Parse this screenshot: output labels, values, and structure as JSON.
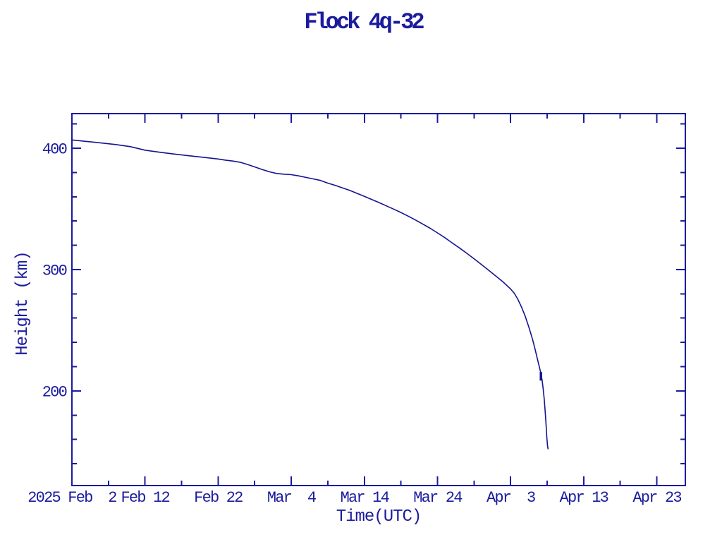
{
  "page": {
    "background": "#ffffff"
  },
  "chart_data": {
    "type": "line",
    "title": "Flock 4q-32",
    "xlabel": "Time(UTC)",
    "ylabel": "Height (km)",
    "x_unit": "days since 2025 Feb 2 00:00 UTC",
    "xlim": [
      0,
      83.9
    ],
    "ylim": [
      122,
      428.5
    ],
    "grid": false,
    "legend": null,
    "colors": {
      "ink": "#1b1b9e",
      "curve": "#14148f",
      "background": "#ffffff"
    },
    "x_major_ticks": [
      {
        "day": 0,
        "label": "2025 Feb  2"
      },
      {
        "day": 10,
        "label": "Feb 12"
      },
      {
        "day": 20,
        "label": "Feb 22"
      },
      {
        "day": 30,
        "label": "Mar  4"
      },
      {
        "day": 40,
        "label": "Mar 14"
      },
      {
        "day": 50,
        "label": "Mar 24"
      },
      {
        "day": 60,
        "label": "Apr  3"
      },
      {
        "day": 70,
        "label": "Apr 13"
      },
      {
        "day": 80,
        "label": "Apr 23"
      }
    ],
    "x_minor_ticks": [
      5,
      15,
      25,
      35,
      45,
      55,
      65,
      75
    ],
    "y_major_ticks": [
      {
        "value": 200,
        "label": "200"
      },
      {
        "value": 300,
        "label": "300"
      },
      {
        "value": 400,
        "label": "400"
      }
    ],
    "y_minor_ticks": [
      140,
      160,
      180,
      220,
      240,
      260,
      280,
      320,
      340,
      360,
      380,
      420
    ],
    "series": [
      {
        "name": "Flock 4q-32 orbital height",
        "points_day_km": [
          [
            0,
            406.8
          ],
          [
            2,
            405.6
          ],
          [
            4,
            404.3
          ],
          [
            6,
            403.0
          ],
          [
            8,
            401.3
          ],
          [
            10,
            398.4
          ],
          [
            12,
            396.7
          ],
          [
            14,
            395.2
          ],
          [
            16,
            393.8
          ],
          [
            18,
            392.5
          ],
          [
            20,
            391.1
          ],
          [
            21,
            390.2
          ],
          [
            22,
            389.4
          ],
          [
            23,
            388.4
          ],
          [
            24,
            386.6
          ],
          [
            25,
            384.6
          ],
          [
            26,
            382.5
          ],
          [
            27,
            380.6
          ],
          [
            28,
            379.2
          ],
          [
            29,
            378.6
          ],
          [
            30,
            378.2
          ],
          [
            31,
            377.2
          ],
          [
            32,
            375.9
          ],
          [
            33,
            374.7
          ],
          [
            34,
            373.4
          ],
          [
            35,
            371.2
          ],
          [
            36,
            369.4
          ],
          [
            37,
            367.3
          ],
          [
            38,
            365.2
          ],
          [
            39,
            362.8
          ],
          [
            40,
            360.3
          ],
          [
            41,
            357.8
          ],
          [
            42,
            355.2
          ],
          [
            43,
            352.5
          ],
          [
            44,
            349.8
          ],
          [
            45,
            347.0
          ],
          [
            46,
            344.0
          ],
          [
            47,
            340.8
          ],
          [
            48,
            337.4
          ],
          [
            49,
            334.0
          ],
          [
            50,
            330.2
          ],
          [
            51,
            326.3
          ],
          [
            52,
            322.0
          ],
          [
            53,
            317.8
          ],
          [
            54,
            313.4
          ],
          [
            55,
            308.9
          ],
          [
            56,
            304.2
          ],
          [
            57,
            299.4
          ],
          [
            58,
            294.6
          ],
          [
            59,
            289.6
          ],
          [
            60,
            284.0
          ],
          [
            60.5,
            280.5
          ],
          [
            61,
            275.5
          ],
          [
            61.5,
            269.0
          ],
          [
            62,
            261.5
          ],
          [
            62.5,
            252.5
          ],
          [
            63,
            242.5
          ],
          [
            63.3,
            235.5
          ],
          [
            63.6,
            228.0
          ],
          [
            63.9,
            220.5
          ],
          [
            64.1,
            215.5
          ],
          [
            64.3,
            209.0
          ],
          [
            64.45,
            202.0
          ],
          [
            64.6,
            193.0
          ],
          [
            64.75,
            181.5
          ],
          [
            64.85,
            172.0
          ],
          [
            64.95,
            162.0
          ],
          [
            65.05,
            155.0
          ],
          [
            65.12,
            152.3
          ]
        ]
      }
    ],
    "anomaly_mark": {
      "day": 64.15,
      "km_from": 208.5,
      "km_to": 215.5
    }
  }
}
